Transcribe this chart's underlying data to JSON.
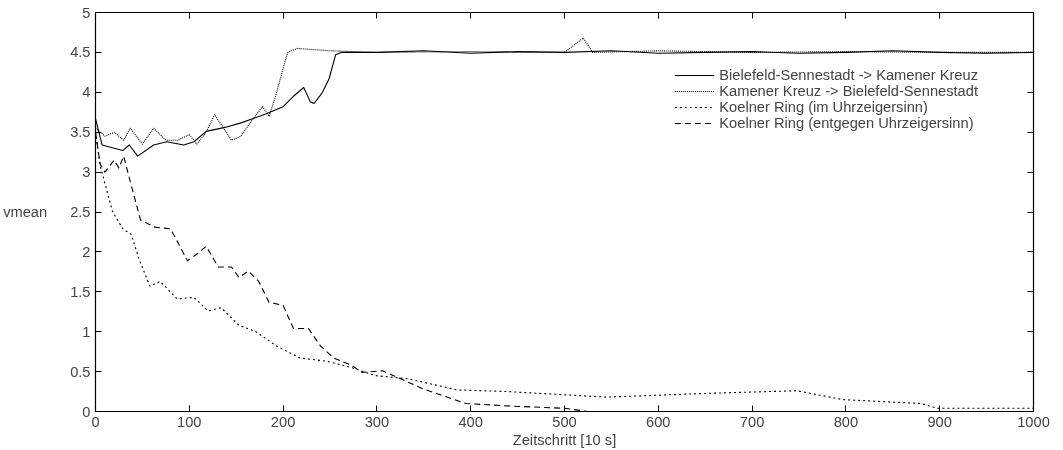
{
  "chart_data": {
    "type": "line",
    "xlabel": "Zeitschritt [10 s]",
    "ylabel": "vmean",
    "xlim": [
      0,
      1000
    ],
    "ylim": [
      0,
      5
    ],
    "xticks": [
      0,
      100,
      200,
      300,
      400,
      500,
      600,
      700,
      800,
      900,
      1000
    ],
    "yticks": [
      0,
      0.5,
      1,
      1.5,
      2,
      2.5,
      3,
      3.5,
      4,
      4.5,
      5
    ],
    "grid": false,
    "legend": "top right",
    "series": [
      {
        "name": "Bielefeld-Sennestadt -> Kamener Kreuz",
        "color": "#000000",
        "line_style": "solid",
        "x": [
          0,
          7,
          29,
          36,
          45,
          62,
          76,
          94,
          105,
          118,
          138,
          156,
          182,
          200,
          211,
          222,
          229,
          233,
          242,
          249,
          256,
          262,
          300,
          350,
          400,
          450,
          500,
          550,
          600,
          650,
          700,
          750,
          800,
          850,
          900,
          950,
          1000
        ],
        "values": [
          3.67,
          3.34,
          3.27,
          3.34,
          3.2,
          3.34,
          3.38,
          3.34,
          3.38,
          3.51,
          3.56,
          3.62,
          3.73,
          3.82,
          3.95,
          4.06,
          3.88,
          3.86,
          4.0,
          4.17,
          4.47,
          4.5,
          4.5,
          4.52,
          4.49,
          4.51,
          4.5,
          4.52,
          4.49,
          4.5,
          4.51,
          4.49,
          4.5,
          4.52,
          4.5,
          4.49,
          4.5
        ]
      },
      {
        "name": "Kamener Kreuz -> Bielefeld-Sennestadt",
        "color": "#000000",
        "line_style": "dotted",
        "x": [
          0,
          10,
          20,
          30,
          37,
          50,
          62,
          75,
          88,
          100,
          108,
          118,
          127,
          145,
          155,
          165,
          178,
          185,
          192,
          200,
          205,
          215,
          250,
          300,
          400,
          500,
          520,
          530,
          600,
          700,
          800,
          900,
          1000
        ],
        "values": [
          3.55,
          3.45,
          3.5,
          3.4,
          3.55,
          3.35,
          3.55,
          3.4,
          3.4,
          3.47,
          3.35,
          3.5,
          3.72,
          3.4,
          3.45,
          3.62,
          3.82,
          3.7,
          3.95,
          4.3,
          4.5,
          4.55,
          4.52,
          4.5,
          4.51,
          4.5,
          4.68,
          4.5,
          4.52,
          4.5,
          4.51,
          4.5,
          4.5
        ]
      },
      {
        "name": "Koelner Ring (im Uhrzeigersinn)",
        "color": "#000000",
        "line_style": "dashed",
        "x": [
          0,
          5,
          18,
          29,
          38,
          47,
          58,
          69,
          87,
          105,
          120,
          134,
          153,
          171,
          193,
          218,
          247,
          276,
          298,
          333,
          386,
          439,
          545,
          659,
          748,
          796,
          880,
          897,
          1000
        ],
        "values": [
          3.5,
          3.08,
          2.51,
          2.29,
          2.22,
          1.89,
          1.57,
          1.63,
          1.41,
          1.43,
          1.26,
          1.3,
          1.08,
          1.0,
          0.82,
          0.67,
          0.63,
          0.54,
          0.45,
          0.41,
          0.27,
          0.25,
          0.18,
          0.23,
          0.26,
          0.15,
          0.1,
          0.04,
          0.04
        ]
      },
      {
        "name": "Koelner Ring (entgegen Uhrzeigersinn)",
        "color": "#000000",
        "line_style": "dashed",
        "x": [
          0,
          5,
          10,
          20,
          25,
          30,
          40,
          48,
          63,
          80,
          98,
          109,
          118,
          131,
          145,
          153,
          163,
          174,
          185,
          200,
          211,
          227,
          240,
          254,
          273,
          284,
          306,
          350,
          395,
          439,
          500,
          525,
          1000
        ],
        "values": [
          3.5,
          3.1,
          3.0,
          3.15,
          3.05,
          3.2,
          2.75,
          2.4,
          2.31,
          2.29,
          1.89,
          1.98,
          2.07,
          1.81,
          1.81,
          1.68,
          1.76,
          1.63,
          1.37,
          1.33,
          1.04,
          1.04,
          0.82,
          0.67,
          0.58,
          0.49,
          0.51,
          0.28,
          0.1,
          0.07,
          0.04,
          0.0,
          0.0
        ]
      }
    ]
  }
}
